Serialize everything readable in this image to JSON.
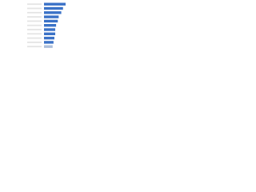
{
  "chart_data": {
    "type": "bar",
    "orientation": "horizontal",
    "categories": [
      null,
      null,
      null,
      null,
      null,
      null,
      null,
      null,
      null,
      null,
      null
    ],
    "values": [
      25,
      22,
      20,
      17,
      16,
      14,
      13,
      13,
      12,
      11,
      10
    ],
    "colors": [
      "#3b72c7",
      "#3b72c7",
      "#3b72c7",
      "#3b72c7",
      "#3b72c7",
      "#3b72c7",
      "#3b72c7",
      "#3b72c7",
      "#3b72c7",
      "#3b72c7",
      "#aebfda"
    ],
    "grid": false
  }
}
